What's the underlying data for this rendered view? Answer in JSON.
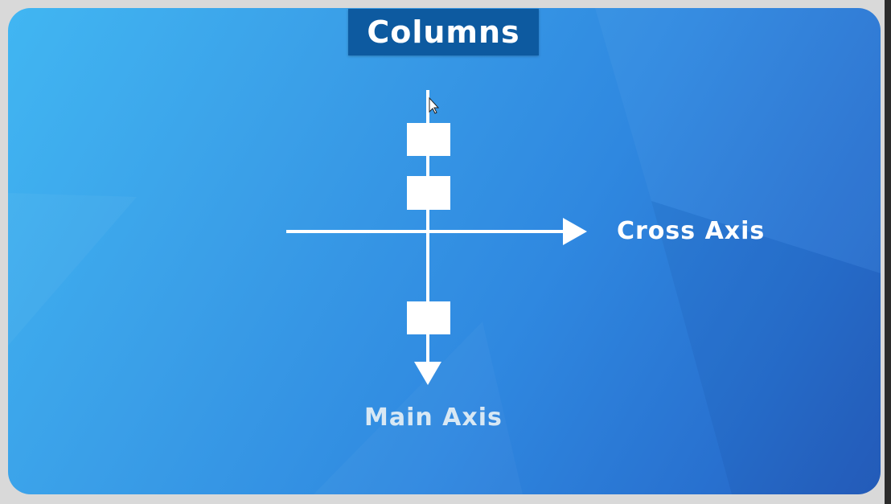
{
  "slide": {
    "title": "Columns",
    "cross_axis_label": "Cross Axis",
    "main_axis_label": "Main Axis"
  },
  "colors": {
    "slide_gradient_start": "#41b6f2",
    "slide_gradient_end": "#2560bf",
    "title_bg": "#0d5aa0",
    "foreground": "#ffffff",
    "main_axis_label": "#d8e8f4"
  },
  "diagram": {
    "main_axis_arrow": "arrow-down",
    "cross_axis_arrow": "arrow-right",
    "items": [
      {
        "name": "column-item-1"
      },
      {
        "name": "column-item-2"
      },
      {
        "name": "column-item-3"
      }
    ]
  },
  "cursor": "mouse-pointer-icon"
}
